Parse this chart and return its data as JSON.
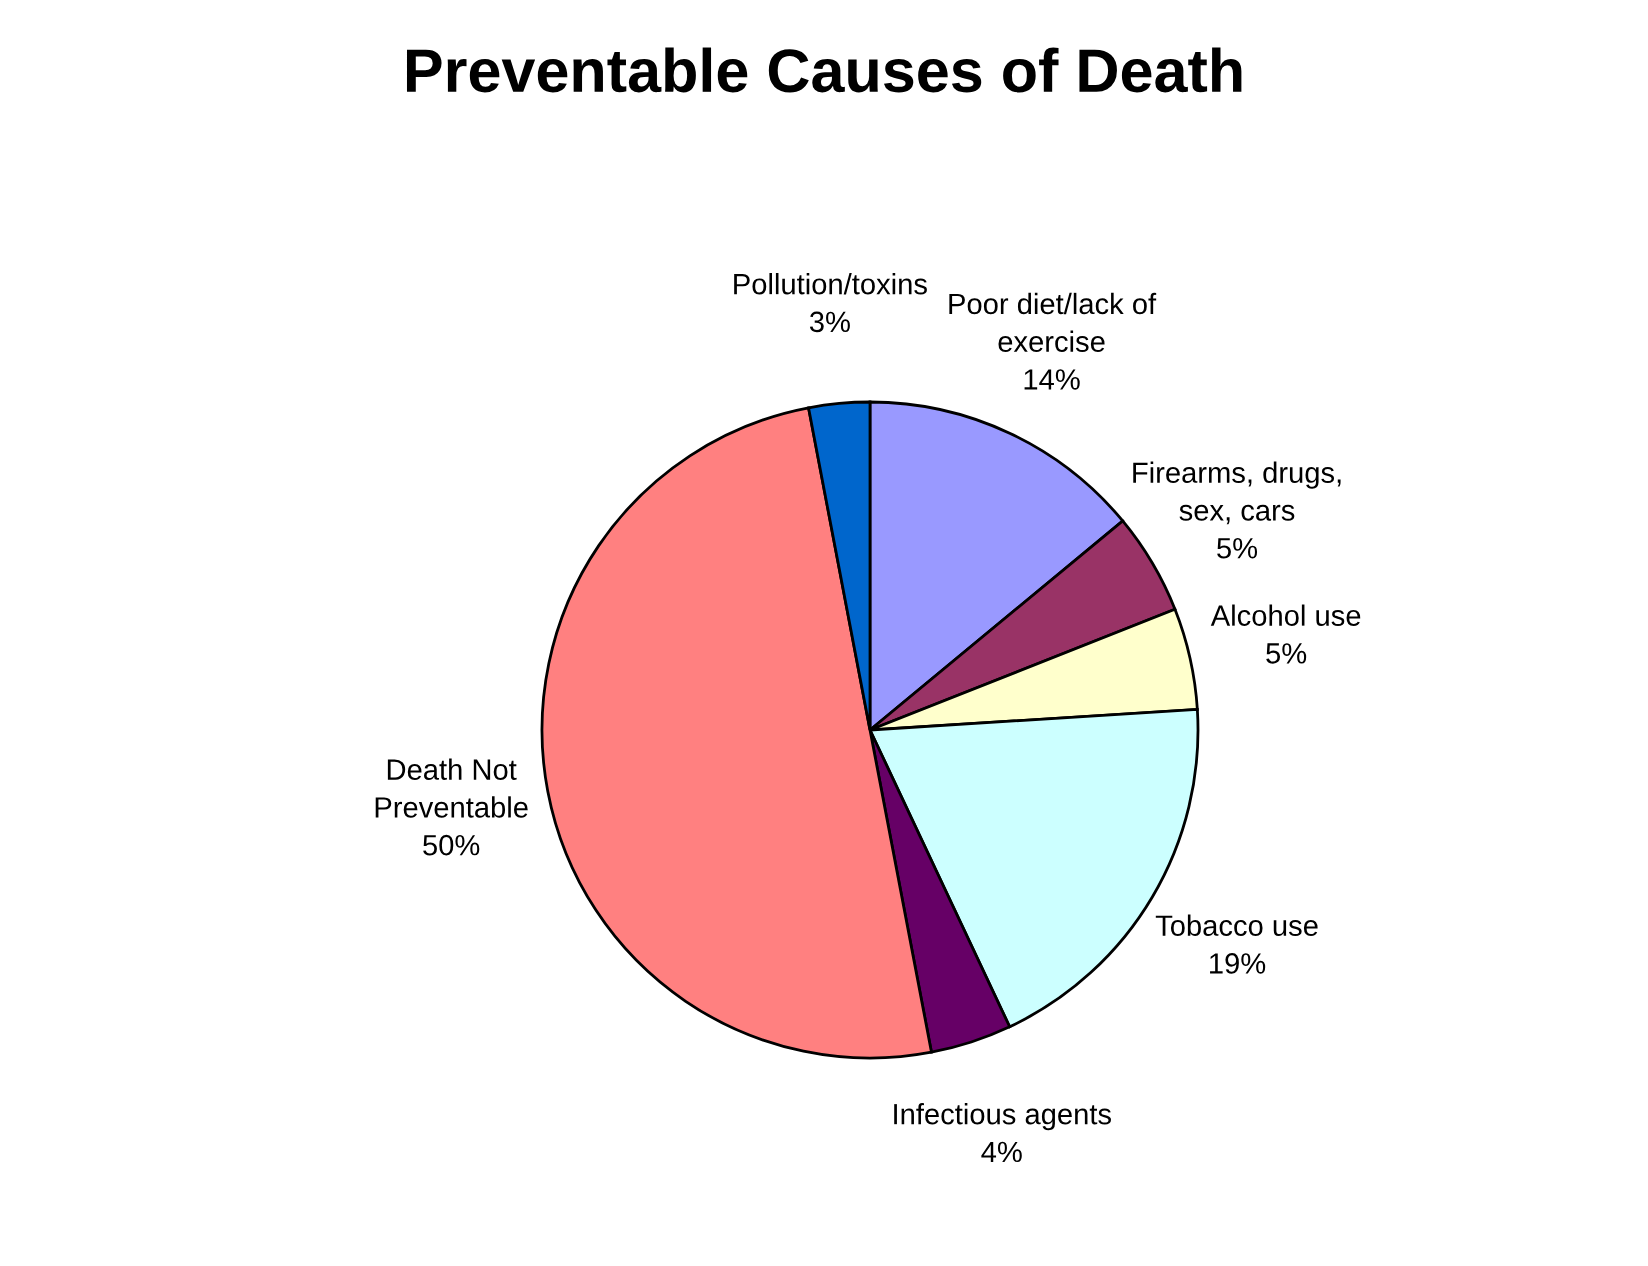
{
  "chart_data": {
    "type": "pie",
    "title": "Preventable Causes of Death",
    "categories": [
      "Poor diet/lack of\nexercise",
      "Firearms, drugs,\nsex, cars",
      "Alcohol use",
      "Tobacco use",
      "Infectious agents",
      "Death Not\nPreventable",
      "Pollution/toxins"
    ],
    "values": [
      14,
      5,
      5,
      19,
      4,
      50,
      3
    ],
    "value_labels": [
      "14%",
      "5%",
      "5%",
      "19%",
      "4%",
      "50%",
      "3%"
    ],
    "colors": [
      "#9999ff",
      "#993366",
      "#ffffcc",
      "#ccffff",
      "#660066",
      "#ff8080",
      "#0066cc"
    ]
  }
}
